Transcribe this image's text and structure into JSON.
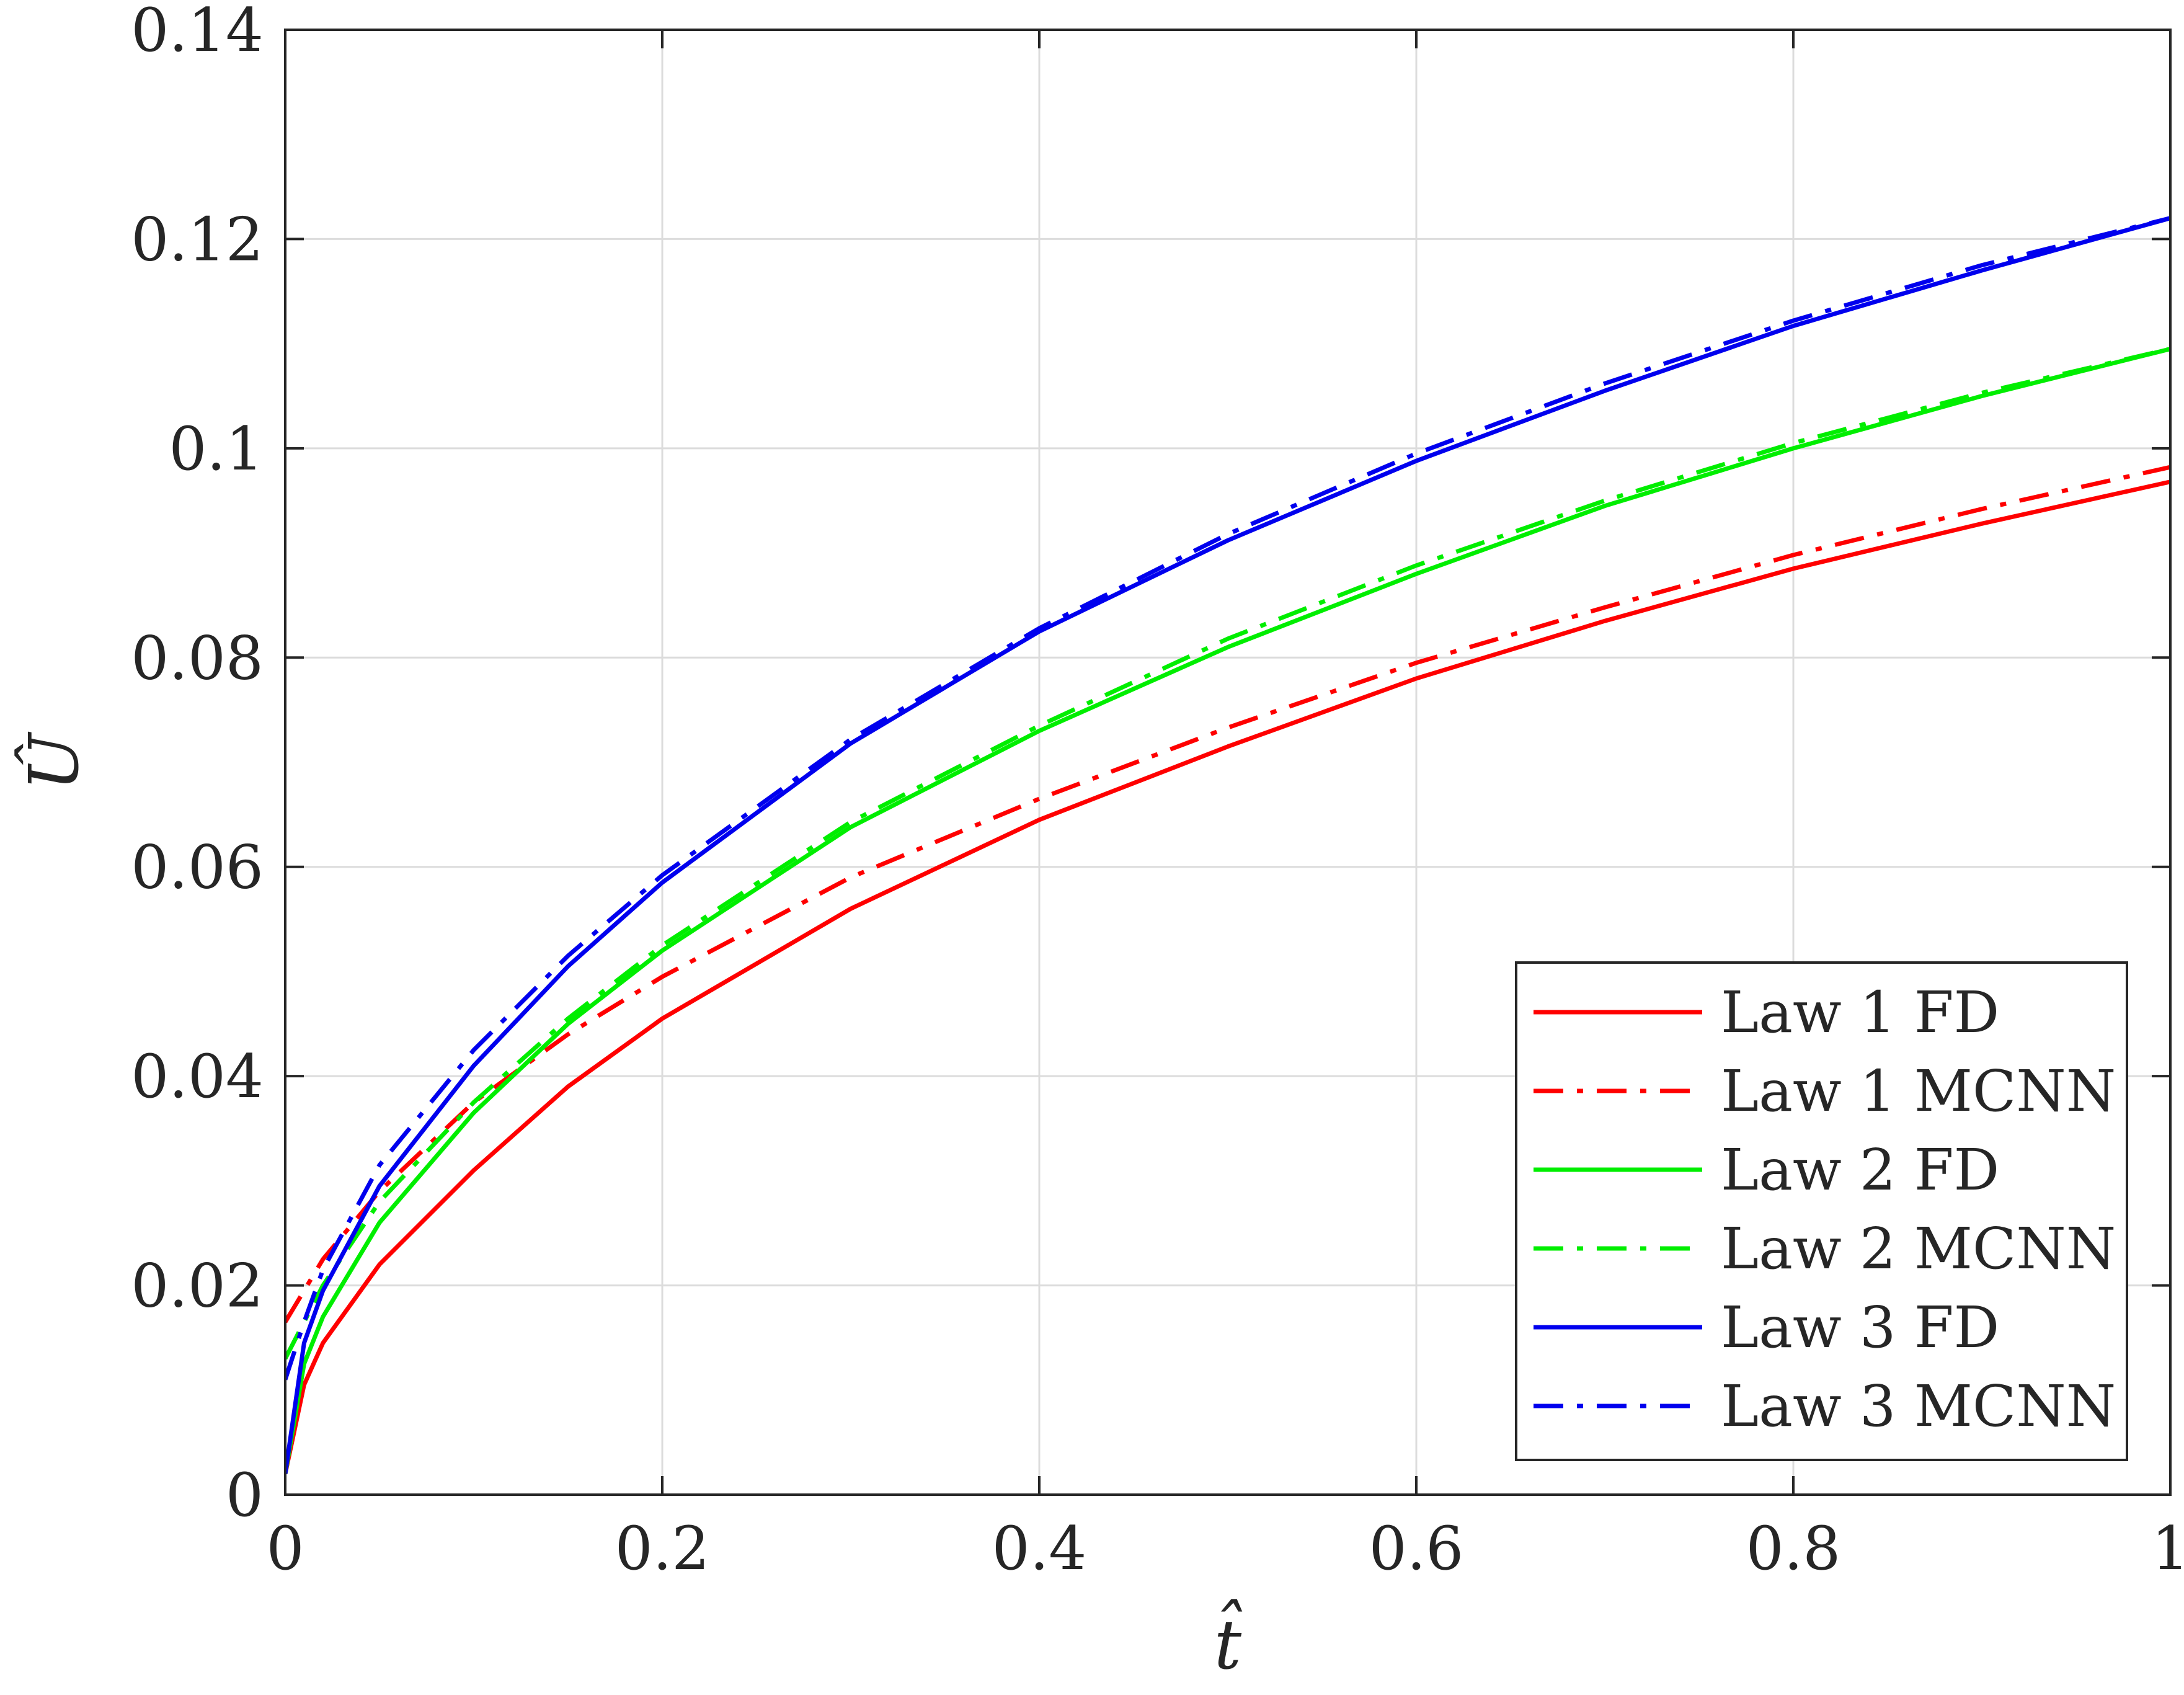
{
  "chart_data": {
    "type": "line",
    "xlabel": "t̂",
    "ylabel": "Û",
    "xlim": [
      0,
      1
    ],
    "ylim": [
      0,
      0.14
    ],
    "xticks": [
      0,
      0.2,
      0.4,
      0.6,
      0.8,
      1
    ],
    "xtick_labels": [
      "0",
      "0.2",
      "0.4",
      "0.6",
      "0.8",
      "1"
    ],
    "yticks": [
      0,
      0.02,
      0.04,
      0.06,
      0.08,
      0.1,
      0.12,
      0.14
    ],
    "ytick_labels": [
      "0",
      "0.02",
      "0.04",
      "0.06",
      "0.08",
      "0.1",
      "0.12",
      "0.14"
    ],
    "grid": true,
    "legend_position": "bottom-right",
    "series": [
      {
        "name": "Law 1 FD",
        "color": "#ff0000",
        "style": "solid",
        "x": [
          0,
          0.01,
          0.02,
          0.05,
          0.1,
          0.15,
          0.2,
          0.3,
          0.4,
          0.5,
          0.6,
          0.7,
          0.8,
          0.9,
          1.0
        ],
        "y": [
          0.002,
          0.0105,
          0.0145,
          0.022,
          0.031,
          0.039,
          0.0455,
          0.056,
          0.0645,
          0.0715,
          0.078,
          0.0835,
          0.0885,
          0.0928,
          0.0968
        ]
      },
      {
        "name": "Law 1 MCNN",
        "color": "#ff0000",
        "style": "dashdot",
        "x": [
          0,
          0.01,
          0.02,
          0.05,
          0.1,
          0.15,
          0.2,
          0.3,
          0.4,
          0.5,
          0.6,
          0.7,
          0.8,
          0.9,
          1.0
        ],
        "y": [
          0.0165,
          0.0195,
          0.0225,
          0.029,
          0.0375,
          0.044,
          0.0495,
          0.059,
          0.0665,
          0.0733,
          0.0795,
          0.0848,
          0.0898,
          0.0942,
          0.0982
        ]
      },
      {
        "name": "Law 2 FD",
        "color": "#00ee00",
        "style": "solid",
        "x": [
          0,
          0.01,
          0.02,
          0.05,
          0.1,
          0.15,
          0.2,
          0.3,
          0.4,
          0.5,
          0.6,
          0.7,
          0.8,
          0.9,
          1.0
        ],
        "y": [
          0.002,
          0.0125,
          0.017,
          0.026,
          0.0365,
          0.045,
          0.052,
          0.0638,
          0.073,
          0.081,
          0.088,
          0.0945,
          0.1,
          0.105,
          0.1095
        ]
      },
      {
        "name": "Law 2 MCNN",
        "color": "#00ee00",
        "style": "dashdot",
        "x": [
          0,
          0.01,
          0.02,
          0.05,
          0.1,
          0.15,
          0.2,
          0.3,
          0.4,
          0.5,
          0.6,
          0.7,
          0.8,
          0.9,
          1.0
        ],
        "y": [
          0.013,
          0.0165,
          0.02,
          0.028,
          0.0375,
          0.0455,
          0.0525,
          0.0643,
          0.0735,
          0.0818,
          0.0888,
          0.095,
          0.1005,
          0.1053,
          0.1095
        ]
      },
      {
        "name": "Law 3 FD",
        "color": "#0000ee",
        "style": "solid",
        "x": [
          0,
          0.01,
          0.02,
          0.05,
          0.1,
          0.15,
          0.2,
          0.3,
          0.4,
          0.5,
          0.6,
          0.7,
          0.8,
          0.9,
          1.0
        ],
        "y": [
          0.002,
          0.0145,
          0.0195,
          0.0295,
          0.041,
          0.0505,
          0.0585,
          0.0718,
          0.0825,
          0.0912,
          0.0988,
          0.1055,
          0.1117,
          0.117,
          0.122
        ]
      },
      {
        "name": "Law 3 MCNN",
        "color": "#0000ee",
        "style": "dashdot",
        "x": [
          0,
          0.01,
          0.02,
          0.05,
          0.1,
          0.15,
          0.2,
          0.3,
          0.4,
          0.5,
          0.6,
          0.7,
          0.8,
          0.9,
          1.0
        ],
        "y": [
          0.011,
          0.0165,
          0.0215,
          0.0315,
          0.0425,
          0.0515,
          0.0592,
          0.0722,
          0.0828,
          0.0918,
          0.0995,
          0.1062,
          0.1122,
          0.1175,
          0.122
        ]
      }
    ]
  }
}
